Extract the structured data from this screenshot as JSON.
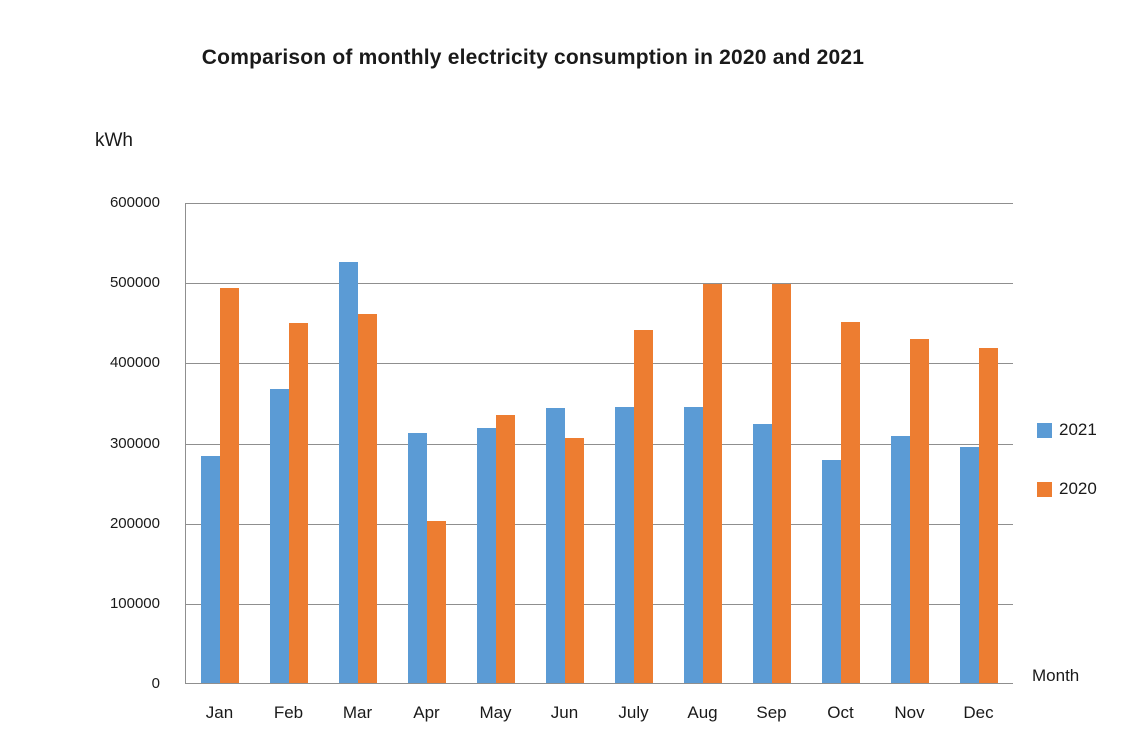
{
  "title": "Comparison of monthly electricity consumption in 2020 and 2021",
  "y_axis_unit_label": "kWh",
  "x_axis_label": "Month",
  "legend": {
    "position": "right",
    "items": [
      {
        "label": "2021",
        "color": "#5B9BD5"
      },
      {
        "label": "2020",
        "color": "#ED7D31"
      }
    ]
  },
  "colors": {
    "series_2021": "#5B9BD5",
    "series_2020": "#ED7D31",
    "gridline": "#8f8f8f",
    "axis": "#8f8f8f",
    "text": "#1a1a1a",
    "background": "#ffffff"
  },
  "chart_data": {
    "type": "bar",
    "title": "Comparison of monthly electricity consumption in 2020 and 2021",
    "xlabel": "Month",
    "ylabel": "kWh",
    "categories": [
      "Jan",
      "Feb",
      "Mar",
      "Apr",
      "May",
      "Jun",
      "July",
      "Aug",
      "Sep",
      "Oct",
      "Nov",
      "Dec"
    ],
    "series": [
      {
        "name": "2021",
        "color": "#5B9BD5",
        "values": [
          285000,
          368000,
          527000,
          313000,
          320000,
          344000,
          345000,
          346000,
          324000,
          280000,
          309000,
          296000
        ]
      },
      {
        "name": "2020",
        "color": "#ED7D31",
        "values": [
          494000,
          450000,
          462000,
          203000,
          336000,
          307000,
          442000,
          499000,
          499000,
          452000,
          431000,
          419000
        ]
      }
    ],
    "ylim": [
      0,
      600000
    ],
    "ytick_interval": 100000,
    "ytick_labels": [
      "0",
      "100000",
      "200000",
      "300000",
      "400000",
      "500000",
      "600000"
    ],
    "grid": true,
    "legend_position": "right"
  }
}
